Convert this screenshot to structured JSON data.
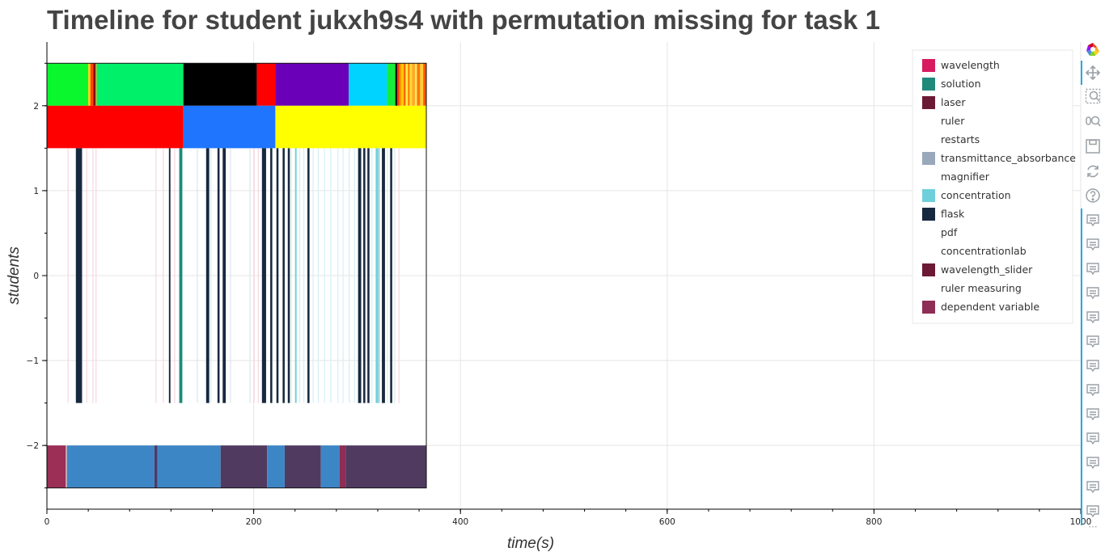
{
  "chart_data": {
    "type": "timeline",
    "title": "Timeline for student jukxh9s4 with permutation missing for task 1",
    "xlabel": "time(s)",
    "ylabel": "students",
    "xlim": [
      0,
      1000
    ],
    "ylim": [
      -2.75,
      2.75
    ],
    "x_ticks": [
      0,
      200,
      400,
      600,
      800,
      1000
    ],
    "y_ticks": [
      -2,
      -1,
      0,
      1,
      2
    ],
    "y_tick_labels": [
      "−2",
      "−1",
      "0",
      "1",
      "2"
    ],
    "grid": true,
    "legend_position": "top-right",
    "legend": [
      {
        "name": "wavelength",
        "color": "#d81b60"
      },
      {
        "name": "solution",
        "color": "#1f8a7a"
      },
      {
        "name": "laser",
        "color": "#6b1a35"
      },
      {
        "name": "ruler",
        "color": "#ffffff"
      },
      {
        "name": "restarts",
        "color": "#ffffff"
      },
      {
        "name": "transmittance_absorbance",
        "color": "#9aa8bb"
      },
      {
        "name": "magnifier",
        "color": "#ffffff"
      },
      {
        "name": "concentration",
        "color": "#6fd0dc"
      },
      {
        "name": "flask",
        "color": "#17293f"
      },
      {
        "name": "pdf",
        "color": "#ffffff"
      },
      {
        "name": "concentrationlab",
        "color": "#ffffff"
      },
      {
        "name": "wavelength_slider",
        "color": "#6b1a35"
      },
      {
        "name": "ruler measuring",
        "color": "#ffffff"
      },
      {
        "name": "dependent variable",
        "color": "#8e2d55"
      }
    ],
    "rows": [
      {
        "y_range": [
          2,
          2.5
        ],
        "segments": [
          [
            0,
            40,
            "#0af72d"
          ],
          [
            40,
            42,
            "#ffd400"
          ],
          [
            42,
            45,
            "#ff4400"
          ],
          [
            45,
            47,
            "#8b0000"
          ],
          [
            47,
            48,
            "#ff8800"
          ],
          [
            48,
            132,
            "#00f06a"
          ],
          [
            132,
            203,
            "#000000"
          ],
          [
            203,
            221,
            "#ff0000"
          ],
          [
            221,
            292,
            "#6a00b7"
          ],
          [
            292,
            329,
            "#00d3ff"
          ],
          [
            329,
            337,
            "#15ec3c"
          ],
          [
            337,
            339,
            "#000000"
          ],
          [
            339,
            341,
            "#ff3300"
          ],
          [
            341,
            343,
            "#ff9900"
          ],
          [
            343,
            345,
            "#ffcc00"
          ],
          [
            345,
            347,
            "#ff6600"
          ],
          [
            347,
            349,
            "#ffee55"
          ],
          [
            349,
            351,
            "#ff8800"
          ],
          [
            351,
            353,
            "#ffdd33"
          ],
          [
            353,
            356,
            "#ffaa22"
          ],
          [
            356,
            358,
            "#ffe066"
          ],
          [
            358,
            361,
            "#ff7700"
          ],
          [
            361,
            364,
            "#ffcc33"
          ],
          [
            364,
            367,
            "#ff5500"
          ]
        ]
      },
      {
        "y_range": [
          1.5,
          2
        ],
        "segments": [
          [
            0,
            132,
            "#ff0000"
          ],
          [
            132,
            221,
            "#1f75fe"
          ],
          [
            221,
            367,
            "#ffff00"
          ]
        ]
      },
      {
        "y_range": [
          -2.5,
          -2
        ],
        "segments": [
          [
            0,
            18,
            "#9b2f55"
          ],
          [
            18,
            19.5,
            "#c7a6b4"
          ],
          [
            19.5,
            21.5,
            "#3d86c6"
          ],
          [
            21.5,
            104,
            "#3d86c6"
          ],
          [
            104,
            107,
            "#4f3a63"
          ],
          [
            107,
            168,
            "#3d86c6"
          ],
          [
            168,
            213,
            "#503a60"
          ],
          [
            213,
            230,
            "#3d86c6"
          ],
          [
            230,
            265,
            "#503a60"
          ],
          [
            265,
            283,
            "#3d86c6"
          ],
          [
            283,
            289,
            "#8e2d55"
          ],
          [
            289,
            367,
            "#503a60"
          ]
        ]
      }
    ],
    "events": {
      "y_range": [
        -1.5,
        1.5
      ],
      "thick": [
        [
          28,
          34,
          "#17293f"
        ],
        [
          118,
          119.5,
          "#17293f"
        ],
        [
          128,
          131,
          "#1f8a7a"
        ],
        [
          154,
          157,
          "#17293f"
        ],
        [
          165,
          167,
          "#17293f"
        ],
        [
          170,
          173,
          "#17293f"
        ],
        [
          208,
          212,
          "#17293f"
        ],
        [
          216,
          218,
          "#17293f"
        ],
        [
          222,
          224,
          "#17293f"
        ],
        [
          228,
          230,
          "#17293f"
        ],
        [
          233,
          235,
          "#17293f"
        ],
        [
          240,
          241.5,
          "#6fd0dc"
        ],
        [
          252,
          254,
          "#17293f"
        ],
        [
          301,
          304,
          "#17293f"
        ],
        [
          306,
          308,
          "#17293f"
        ],
        [
          310,
          312,
          "#17293f"
        ],
        [
          318,
          320,
          "#6fd0dc"
        ],
        [
          320,
          322,
          "#9ed6e0"
        ],
        [
          324,
          327,
          "#17293f"
        ],
        [
          332,
          334,
          "#17293f"
        ]
      ],
      "faint": [
        [
          20,
          21,
          "#f6d9e0"
        ],
        [
          38,
          39,
          "#f6d9e0"
        ],
        [
          44,
          45,
          "#f6d9e0"
        ],
        [
          47,
          48,
          "#f6d9e0"
        ],
        [
          105,
          106,
          "#f6d9e0"
        ],
        [
          112,
          113,
          "#f6d9e0"
        ],
        [
          123,
          124,
          "#f6d9e0"
        ],
        [
          145,
          146,
          "#dde6ee"
        ],
        [
          158,
          159,
          "#dde6ee"
        ],
        [
          177,
          178,
          "#dde6ee"
        ],
        [
          196,
          197,
          "#dde6ee"
        ],
        [
          200,
          201,
          "#f6d9e0"
        ],
        [
          204,
          205,
          "#f6d9e0"
        ],
        [
          236,
          237,
          "#d7f0f4"
        ],
        [
          244,
          245,
          "#d7f0f4"
        ],
        [
          248,
          249,
          "#d7f0f4"
        ],
        [
          257,
          258,
          "#d7f0f4"
        ],
        [
          262,
          263,
          "#d7f0f4"
        ],
        [
          268,
          269,
          "#d7f0f4"
        ],
        [
          274,
          275,
          "#d7f0f4"
        ],
        [
          281,
          282,
          "#d7f0f4"
        ],
        [
          286,
          287,
          "#d7f0f4"
        ],
        [
          292,
          293,
          "#d7f0f4"
        ],
        [
          297,
          298,
          "#d7f0f4"
        ],
        [
          314,
          315,
          "#d7f0f4"
        ],
        [
          329,
          330,
          "#d7f0f4"
        ],
        [
          336,
          337,
          "#d7f0f4"
        ],
        [
          340,
          341,
          "#f6d9e0"
        ]
      ]
    }
  },
  "toolbar": {
    "tools": [
      {
        "name": "bokeh-logo-icon",
        "interactable": false
      },
      {
        "name": "pan-icon",
        "interactable": true
      },
      {
        "name": "box-zoom-icon",
        "interactable": true
      },
      {
        "name": "wheel-zoom-icon",
        "interactable": true
      },
      {
        "name": "save-icon",
        "interactable": true
      },
      {
        "name": "reset-icon",
        "interactable": true
      },
      {
        "name": "help-icon",
        "interactable": true
      },
      {
        "name": "hover-icon",
        "count": 13,
        "interactable": true
      },
      {
        "name": "more-icon",
        "interactable": true
      }
    ],
    "more_glyph": "···",
    "accent_color": "#26aae1"
  }
}
